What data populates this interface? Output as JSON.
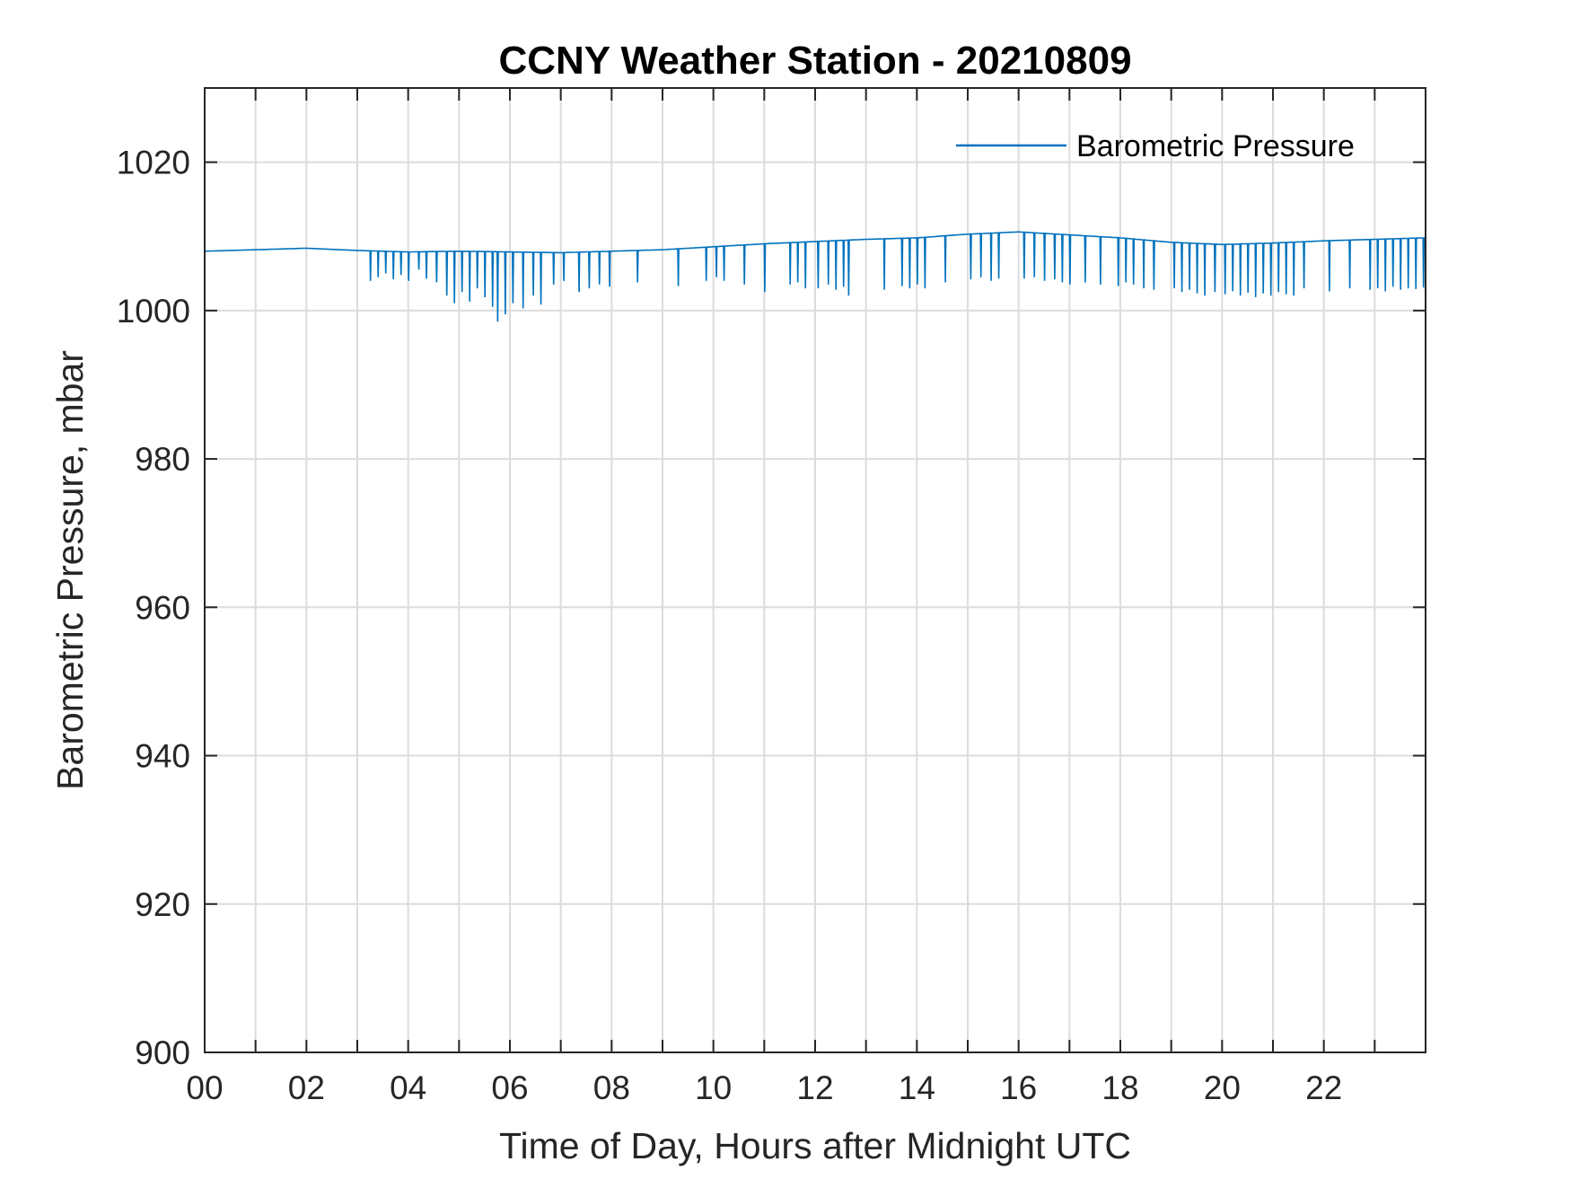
{
  "chart_data": {
    "type": "line",
    "title": "CCNY Weather Station - 20210809",
    "xlabel": "Time of Day, Hours after Midnight UTC",
    "ylabel": "Barometric Pressure, mbar",
    "xlim": [
      0,
      24
    ],
    "ylim": [
      900,
      1030
    ],
    "x_ticks": [
      0,
      2,
      4,
      6,
      8,
      10,
      12,
      14,
      16,
      18,
      20,
      22
    ],
    "x_tick_labels": [
      "00",
      "02",
      "04",
      "06",
      "08",
      "10",
      "12",
      "14",
      "16",
      "18",
      "20",
      "22"
    ],
    "y_ticks": [
      900,
      920,
      940,
      960,
      980,
      1000,
      1020
    ],
    "y_tick_labels": [
      "900",
      "920",
      "940",
      "960",
      "980",
      "1000",
      "1020"
    ],
    "grid": true,
    "legend": {
      "position": "top-right",
      "entries": [
        "Barometric Pressure"
      ]
    },
    "series": [
      {
        "name": "Barometric Pressure",
        "color": "#0072BD",
        "baseline": {
          "x": [
            0,
            1,
            2,
            3,
            4,
            5,
            6,
            7,
            8,
            9,
            10,
            11,
            12,
            13,
            14,
            15,
            16,
            17,
            18,
            19,
            20,
            21,
            22,
            23,
            24
          ],
          "y": [
            1008.0,
            1008.2,
            1008.4,
            1008.1,
            1007.9,
            1008.0,
            1007.9,
            1007.8,
            1008.0,
            1008.2,
            1008.6,
            1009.0,
            1009.3,
            1009.6,
            1009.8,
            1010.3,
            1010.6,
            1010.2,
            1009.8,
            1009.2,
            1008.9,
            1009.1,
            1009.4,
            1009.6,
            1009.8
          ]
        },
        "dropouts": [
          {
            "x": 3.25,
            "y": 1004.0
          },
          {
            "x": 3.4,
            "y": 1004.5
          },
          {
            "x": 3.55,
            "y": 1005.0
          },
          {
            "x": 3.7,
            "y": 1004.2
          },
          {
            "x": 3.85,
            "y": 1004.8
          },
          {
            "x": 4.0,
            "y": 1004.0
          },
          {
            "x": 4.2,
            "y": 1005.5
          },
          {
            "x": 4.35,
            "y": 1004.3
          },
          {
            "x": 4.55,
            "y": 1003.8
          },
          {
            "x": 4.75,
            "y": 1002.0
          },
          {
            "x": 4.9,
            "y": 1001.0
          },
          {
            "x": 5.05,
            "y": 1002.5
          },
          {
            "x": 5.2,
            "y": 1001.2
          },
          {
            "x": 5.35,
            "y": 1003.0
          },
          {
            "x": 5.5,
            "y": 1001.8
          },
          {
            "x": 5.65,
            "y": 1000.5
          },
          {
            "x": 5.75,
            "y": 998.5
          },
          {
            "x": 5.9,
            "y": 999.5
          },
          {
            "x": 6.05,
            "y": 1001.0
          },
          {
            "x": 6.25,
            "y": 1000.3
          },
          {
            "x": 6.45,
            "y": 1002.0
          },
          {
            "x": 6.6,
            "y": 1000.8
          },
          {
            "x": 6.85,
            "y": 1003.5
          },
          {
            "x": 7.05,
            "y": 1004.0
          },
          {
            "x": 7.35,
            "y": 1002.5
          },
          {
            "x": 7.55,
            "y": 1003.0
          },
          {
            "x": 7.75,
            "y": 1003.5
          },
          {
            "x": 7.95,
            "y": 1003.2
          },
          {
            "x": 8.5,
            "y": 1003.8
          },
          {
            "x": 9.3,
            "y": 1003.3
          },
          {
            "x": 9.85,
            "y": 1004.0
          },
          {
            "x": 10.05,
            "y": 1004.5
          },
          {
            "x": 10.2,
            "y": 1004.0
          },
          {
            "x": 10.6,
            "y": 1003.5
          },
          {
            "x": 11.0,
            "y": 1002.5
          },
          {
            "x": 11.5,
            "y": 1003.5
          },
          {
            "x": 11.65,
            "y": 1003.8
          },
          {
            "x": 11.8,
            "y": 1003.0
          },
          {
            "x": 12.05,
            "y": 1003.0
          },
          {
            "x": 12.25,
            "y": 1003.5
          },
          {
            "x": 12.4,
            "y": 1002.8
          },
          {
            "x": 12.55,
            "y": 1003.2
          },
          {
            "x": 12.65,
            "y": 1002.0
          },
          {
            "x": 13.35,
            "y": 1002.8
          },
          {
            "x": 13.7,
            "y": 1003.3
          },
          {
            "x": 13.85,
            "y": 1003.0
          },
          {
            "x": 14.0,
            "y": 1003.5
          },
          {
            "x": 14.15,
            "y": 1003.0
          },
          {
            "x": 14.55,
            "y": 1003.8
          },
          {
            "x": 15.05,
            "y": 1004.2
          },
          {
            "x": 15.25,
            "y": 1004.5
          },
          {
            "x": 15.45,
            "y": 1004.0
          },
          {
            "x": 15.6,
            "y": 1004.3
          },
          {
            "x": 16.1,
            "y": 1004.3
          },
          {
            "x": 16.3,
            "y": 1004.5
          },
          {
            "x": 16.5,
            "y": 1004.0
          },
          {
            "x": 16.7,
            "y": 1004.2
          },
          {
            "x": 16.85,
            "y": 1003.8
          },
          {
            "x": 17.0,
            "y": 1003.5
          },
          {
            "x": 17.3,
            "y": 1003.8
          },
          {
            "x": 17.6,
            "y": 1003.5
          },
          {
            "x": 17.95,
            "y": 1003.3
          },
          {
            "x": 18.1,
            "y": 1003.8
          },
          {
            "x": 18.25,
            "y": 1003.5
          },
          {
            "x": 18.45,
            "y": 1003.0
          },
          {
            "x": 18.65,
            "y": 1002.8
          },
          {
            "x": 19.05,
            "y": 1003.0
          },
          {
            "x": 19.2,
            "y": 1002.5
          },
          {
            "x": 19.35,
            "y": 1002.8
          },
          {
            "x": 19.5,
            "y": 1002.3
          },
          {
            "x": 19.65,
            "y": 1002.0
          },
          {
            "x": 19.85,
            "y": 1002.5
          },
          {
            "x": 20.05,
            "y": 1002.2
          },
          {
            "x": 20.2,
            "y": 1002.6
          },
          {
            "x": 20.35,
            "y": 1002.0
          },
          {
            "x": 20.5,
            "y": 1002.4
          },
          {
            "x": 20.65,
            "y": 1001.8
          },
          {
            "x": 20.8,
            "y": 1002.3
          },
          {
            "x": 20.95,
            "y": 1002.0
          },
          {
            "x": 21.1,
            "y": 1002.5
          },
          {
            "x": 21.25,
            "y": 1002.2
          },
          {
            "x": 21.4,
            "y": 1002.0
          },
          {
            "x": 21.6,
            "y": 1003.0
          },
          {
            "x": 22.1,
            "y": 1002.6
          },
          {
            "x": 22.5,
            "y": 1003.0
          },
          {
            "x": 22.9,
            "y": 1002.8
          },
          {
            "x": 23.05,
            "y": 1003.0
          },
          {
            "x": 23.2,
            "y": 1002.6
          },
          {
            "x": 23.35,
            "y": 1003.2
          },
          {
            "x": 23.5,
            "y": 1002.8
          },
          {
            "x": 23.65,
            "y": 1003.0
          },
          {
            "x": 23.8,
            "y": 1002.9
          },
          {
            "x": 23.95,
            "y": 1003.1
          }
        ]
      }
    ]
  }
}
